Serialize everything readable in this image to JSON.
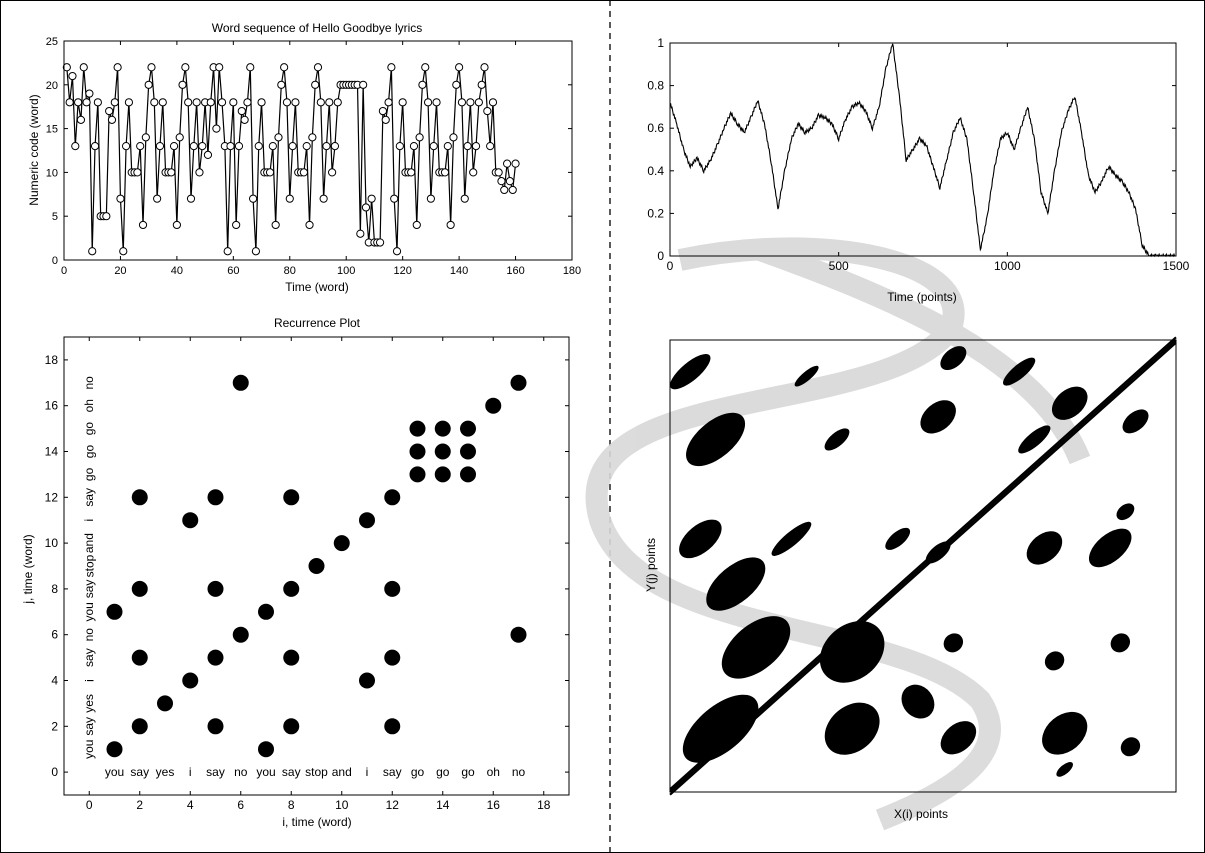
{
  "chart_data": [
    {
      "type": "line",
      "title": "Word sequence of Hello Goodbye lyrics",
      "xlabel": "Time (word)",
      "ylabel": "Numeric code (word)",
      "xlim": [
        0,
        180
      ],
      "ylim": [
        0,
        25
      ],
      "xticks": [
        "0",
        "20",
        "40",
        "60",
        "80",
        "100",
        "120",
        "140",
        "160",
        "180"
      ],
      "yticks": [
        "0",
        "5",
        "10",
        "15",
        "20",
        "25"
      ],
      "marker": "circle",
      "values": [
        22,
        18,
        21,
        13,
        18,
        16,
        22,
        18,
        19,
        1,
        13,
        18,
        5,
        5,
        5,
        17,
        16,
        18,
        22,
        7,
        1,
        13,
        18,
        10,
        10,
        10,
        13,
        4,
        14,
        20,
        22,
        18,
        7,
        13,
        18,
        10,
        10,
        10,
        13,
        4,
        14,
        20,
        22,
        18,
        7,
        13,
        18,
        10,
        13,
        18,
        12,
        18,
        22,
        15,
        22,
        18,
        13,
        1,
        13,
        18,
        4,
        13,
        17,
        16,
        18,
        22,
        7,
        1,
        13,
        18,
        10,
        10,
        10,
        13,
        4,
        14,
        20,
        22,
        18,
        7,
        13,
        18,
        10,
        10,
        10,
        13,
        4,
        14,
        20,
        22,
        18,
        7,
        13,
        18,
        10,
        13,
        18,
        20,
        20,
        20,
        20,
        20,
        20,
        20,
        3,
        20,
        6,
        2,
        7,
        2,
        2,
        2,
        17,
        16,
        18,
        22,
        7,
        1,
        13,
        18,
        10,
        10,
        10,
        13,
        4,
        14,
        20,
        22,
        18,
        7,
        13,
        18,
        10,
        10,
        10,
        13,
        4,
        14,
        20,
        22,
        18,
        7,
        13,
        18,
        10,
        13,
        18,
        20,
        22,
        17,
        13,
        18,
        10,
        10,
        9,
        8,
        11,
        9,
        8,
        11
      ]
    },
    {
      "type": "line",
      "title": "",
      "xlabel": "Time (points)",
      "ylabel": "",
      "xlim": [
        0,
        1500
      ],
      "ylim": [
        0,
        1
      ],
      "xticks": [
        "0",
        "500",
        "1000",
        "1500"
      ],
      "yticks": [
        "0",
        "0.2",
        "0.4",
        "0.6",
        "0.8",
        "1"
      ],
      "x": [
        0,
        20,
        40,
        60,
        80,
        100,
        120,
        140,
        160,
        180,
        200,
        220,
        240,
        260,
        280,
        300,
        320,
        340,
        360,
        380,
        400,
        420,
        440,
        460,
        480,
        500,
        520,
        540,
        560,
        580,
        600,
        620,
        640,
        660,
        680,
        700,
        720,
        740,
        760,
        780,
        800,
        820,
        840,
        860,
        880,
        900,
        920,
        940,
        960,
        980,
        1000,
        1020,
        1040,
        1060,
        1080,
        1100,
        1120,
        1140,
        1160,
        1180,
        1200,
        1220,
        1240,
        1260,
        1280,
        1300,
        1320,
        1340,
        1360,
        1380,
        1400,
        1420,
        1440,
        1460,
        1480,
        1500
      ],
      "values": [
        0.72,
        0.62,
        0.5,
        0.42,
        0.46,
        0.4,
        0.45,
        0.52,
        0.6,
        0.67,
        0.62,
        0.58,
        0.65,
        0.73,
        0.62,
        0.44,
        0.22,
        0.4,
        0.55,
        0.62,
        0.58,
        0.6,
        0.66,
        0.65,
        0.62,
        0.55,
        0.64,
        0.7,
        0.72,
        0.68,
        0.6,
        0.7,
        0.88,
        1.0,
        0.75,
        0.45,
        0.5,
        0.55,
        0.52,
        0.42,
        0.32,
        0.45,
        0.58,
        0.65,
        0.55,
        0.3,
        0.03,
        0.18,
        0.4,
        0.55,
        0.58,
        0.5,
        0.6,
        0.7,
        0.55,
        0.3,
        0.2,
        0.4,
        0.58,
        0.68,
        0.75,
        0.58,
        0.38,
        0.3,
        0.35,
        0.42,
        0.38,
        0.35,
        0.3,
        0.22,
        0.05,
        0.0,
        0.0,
        0.0,
        0.0,
        0.0
      ]
    },
    {
      "type": "scatter",
      "title": "Recurrence Plot",
      "xlabel": "i, time (word)",
      "ylabel": "j, time (word)",
      "xlim": [
        -1,
        19
      ],
      "ylim": [
        -1,
        19
      ],
      "xticks": [
        "0",
        "2",
        "4",
        "6",
        "8",
        "10",
        "12",
        "14",
        "16",
        "18"
      ],
      "yticks": [
        "0",
        "2",
        "4",
        "6",
        "8",
        "10",
        "12",
        "14",
        "16",
        "18"
      ],
      "words_x": [
        "you",
        "say",
        "yes",
        "i",
        "say",
        "no",
        "you",
        "say",
        "stop",
        "and",
        "i",
        "say",
        "go",
        "go",
        "go",
        "oh",
        "no"
      ],
      "words_y": [
        "you",
        "say",
        "yes",
        "i",
        "say",
        "no",
        "you",
        "say",
        "stop",
        "and",
        "i",
        "say",
        "go",
        "go",
        "go",
        "oh",
        "no"
      ],
      "points": [
        [
          1,
          1
        ],
        [
          2,
          2
        ],
        [
          3,
          3
        ],
        [
          4,
          4
        ],
        [
          5,
          5
        ],
        [
          6,
          6
        ],
        [
          7,
          7
        ],
        [
          8,
          8
        ],
        [
          9,
          9
        ],
        [
          10,
          10
        ],
        [
          11,
          11
        ],
        [
          12,
          12
        ],
        [
          13,
          13
        ],
        [
          14,
          14
        ],
        [
          15,
          15
        ],
        [
          16,
          16
        ],
        [
          17,
          17
        ],
        [
          1,
          7
        ],
        [
          7,
          1
        ],
        [
          2,
          5
        ],
        [
          2,
          8
        ],
        [
          2,
          12
        ],
        [
          5,
          2
        ],
        [
          5,
          8
        ],
        [
          5,
          12
        ],
        [
          8,
          2
        ],
        [
          8,
          5
        ],
        [
          8,
          12
        ],
        [
          12,
          2
        ],
        [
          12,
          5
        ],
        [
          12,
          8
        ],
        [
          4,
          11
        ],
        [
          11,
          4
        ],
        [
          6,
          17
        ],
        [
          17,
          6
        ],
        [
          13,
          14
        ],
        [
          13,
          15
        ],
        [
          14,
          13
        ],
        [
          14,
          15
        ],
        [
          15,
          13
        ],
        [
          15,
          14
        ]
      ]
    },
    {
      "type": "heatmap",
      "title": "",
      "xlabel": "X(i) points",
      "ylabel": "Y(j) points",
      "colors": [
        "#000000",
        "#ffffff"
      ]
    }
  ]
}
